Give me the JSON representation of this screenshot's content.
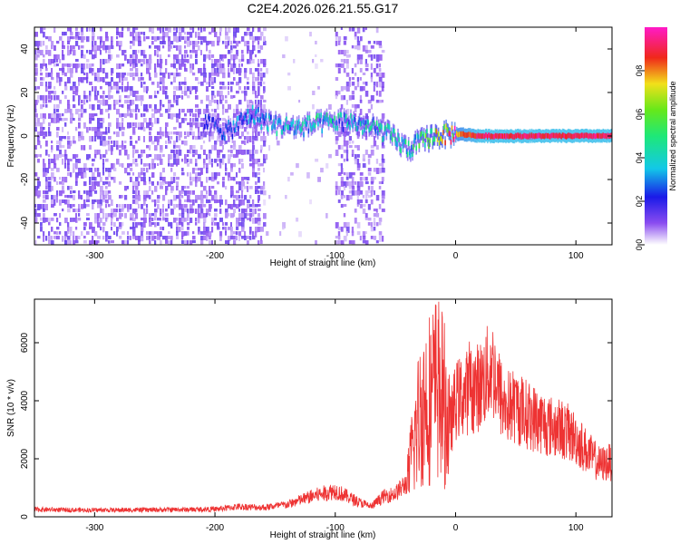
{
  "title": "C2E4.2026.026.21.55.G17",
  "chart_data": [
    {
      "type": "heatmap",
      "name": "spectrogram",
      "xlabel": "Height of straight line (km)",
      "ylabel": "Frequency (Hz)",
      "xlim": [
        -350,
        130
      ],
      "ylim": [
        -50,
        50
      ],
      "xticks": [
        -300,
        -200,
        -100,
        0,
        100
      ],
      "yticks": [
        -40,
        -20,
        0,
        20,
        40
      ],
      "colorbar": {
        "label": "Normalized spectral amplitude",
        "range": [
          0,
          1
        ],
        "ticks": [
          0.0,
          0.2,
          0.4,
          0.6,
          0.8
        ],
        "colormap": "rainbow (white, violet, blue, cyan, green, yellow, red, magenta)"
      },
      "regions": [
        {
          "x_range": [
            -350,
            -160
          ],
          "description": "scattered low-amplitude violet noise across all frequencies"
        },
        {
          "x_range": [
            -160,
            -100
          ],
          "description": "gap with sparse noise"
        },
        {
          "x_range": [
            -100,
            -60
          ],
          "description": "band of violet noise"
        },
        {
          "x_range": [
            -60,
            130
          ],
          "description": "mostly clean background"
        }
      ],
      "signal_track": [
        {
          "x": -210,
          "freq": 6,
          "amp": 0.2
        },
        {
          "x": -190,
          "freq": 2,
          "amp": 0.25
        },
        {
          "x": -170,
          "freq": 10,
          "amp": 0.3
        },
        {
          "x": -150,
          "freq": 5,
          "amp": 0.35
        },
        {
          "x": -130,
          "freq": 4,
          "amp": 0.4
        },
        {
          "x": -110,
          "freq": 6,
          "amp": 0.4
        },
        {
          "x": -90,
          "freq": 7,
          "amp": 0.35
        },
        {
          "x": -60,
          "freq": 2,
          "amp": 0.45
        },
        {
          "x": -40,
          "freq": -6,
          "amp": 0.4
        },
        {
          "x": -20,
          "freq": 0,
          "amp": 0.6
        },
        {
          "x": 0,
          "freq": 1,
          "amp": 0.8
        },
        {
          "x": 20,
          "freq": 0,
          "amp": 0.95
        },
        {
          "x": 60,
          "freq": 0,
          "amp": 0.95
        },
        {
          "x": 100,
          "freq": 0,
          "amp": 0.95
        },
        {
          "x": 130,
          "freq": 0,
          "amp": 0.95
        }
      ]
    },
    {
      "type": "line",
      "name": "snr",
      "xlabel": "Height of straight line (km)",
      "ylabel": "SNR (10 * v/v)",
      "xlim": [
        -350,
        130
      ],
      "ylim": [
        0,
        7500
      ],
      "xticks": [
        -300,
        -200,
        -100,
        0,
        100
      ],
      "yticks": [
        0,
        2000,
        4000,
        6000
      ],
      "color": "#ee3333",
      "series": [
        {
          "x": [
            -350,
            -300,
            -250,
            -200,
            -180,
            -160,
            -140,
            -120,
            -100,
            -90,
            -80,
            -70,
            -60,
            -50,
            -40,
            -35,
            -30,
            -25,
            -20,
            -15,
            -10,
            -5,
            0,
            10,
            20,
            25,
            30,
            40,
            50,
            60,
            70,
            80,
            90,
            100,
            110,
            120,
            130
          ],
          "y": [
            250,
            230,
            240,
            260,
            350,
            320,
            420,
            700,
            900,
            700,
            500,
            350,
            700,
            800,
            1200,
            2500,
            3500,
            4000,
            4200,
            4500,
            4000,
            3000,
            4000,
            4300,
            4500,
            4800,
            5200,
            3800,
            3800,
            3500,
            3300,
            3100,
            3000,
            2700,
            2200,
            1800,
            1900
          ]
        }
      ]
    }
  ]
}
